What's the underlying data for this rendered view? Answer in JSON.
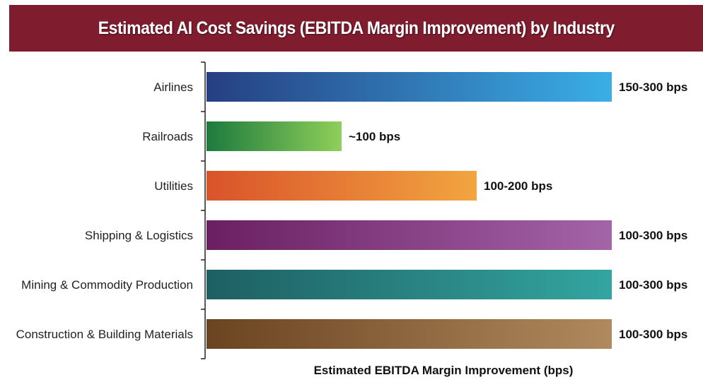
{
  "chart_data": {
    "type": "bar",
    "orientation": "horizontal",
    "title": "Estimated AI Cost Savings (EBITDA Margin Improvement) by Industry",
    "xlabel": "Estimated EBITDA Margin Improvement (bps)",
    "ylabel": "",
    "xlim": [
      0,
      300
    ],
    "grid": false,
    "categories": [
      "Airlines",
      "Railroads",
      "Utilities",
      "Shipping & Logistics",
      "Mining & Commodity Production",
      "Construction & Building Materials"
    ],
    "ranges": [
      [
        150,
        300
      ],
      [
        100,
        100
      ],
      [
        100,
        200
      ],
      [
        100,
        300
      ],
      [
        100,
        300
      ],
      [
        100,
        300
      ]
    ],
    "values": [
      300,
      100,
      200,
      300,
      300,
      300
    ],
    "data_labels": [
      "150-300 bps",
      "~100 bps",
      "100-200 bps",
      "100-300 bps",
      "100-300 bps",
      "100-300 bps"
    ],
    "colors": [
      [
        "#263f82",
        "#3aaee6"
      ],
      [
        "#1d7a3e",
        "#8fcf5a"
      ],
      [
        "#d9532a",
        "#f2a540"
      ],
      [
        "#6a1f62",
        "#a464a8"
      ],
      [
        "#1e5f62",
        "#33a5a0"
      ],
      [
        "#6a4320",
        "#b08a5e"
      ]
    ],
    "title_bar_color": "#7f1d2f"
  }
}
